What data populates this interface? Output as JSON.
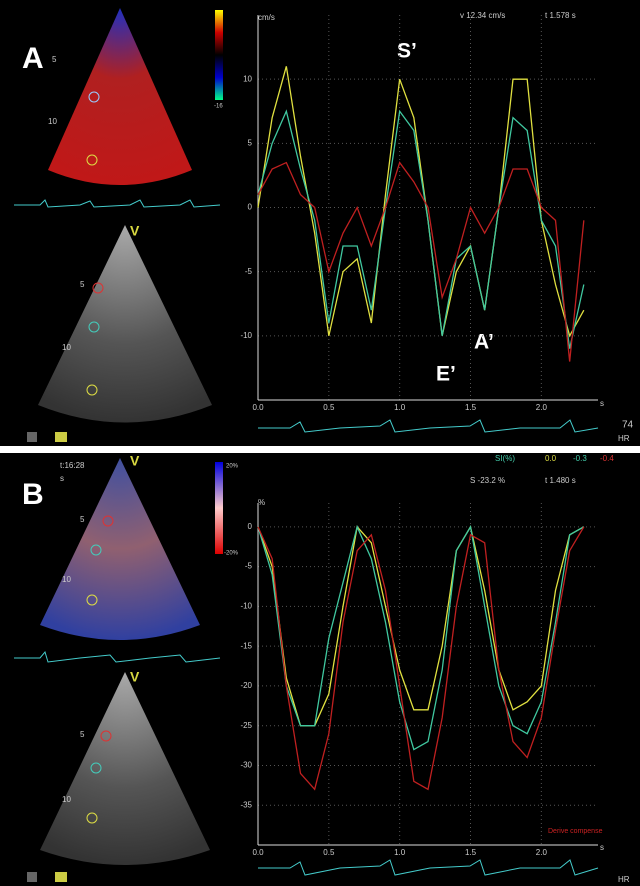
{
  "chart_data": [
    {
      "type": "line",
      "panel_label": "A",
      "y_unit": "cm/s",
      "readout_v": "v 12.34 cm/s",
      "readout_t": "t 1.578 s",
      "x_unit": "s",
      "annotations": [
        "S’",
        "E’",
        "A’"
      ],
      "hr": "74",
      "hr_label": "HR",
      "image_marker": "V",
      "depth_labels_top": [
        5,
        10
      ],
      "depth_labels_bottom": [
        5,
        10
      ],
      "colorbar_labels": [
        "-16"
      ],
      "x": [
        0,
        0.1,
        0.2,
        0.3,
        0.4,
        0.5,
        0.6,
        0.7,
        0.8,
        0.9,
        1.0,
        1.1,
        1.2,
        1.3,
        1.4,
        1.5,
        1.6,
        1.7,
        1.8,
        1.9,
        2.0,
        2.1,
        2.2,
        2.3
      ],
      "series": [
        {
          "color": "#e0e040",
          "values": [
            0,
            7,
            11,
            4,
            -2,
            -10,
            -5,
            -4,
            -9,
            1,
            10,
            7,
            -1,
            -10,
            -5,
            -3,
            -8,
            0,
            10,
            10,
            -1,
            -6,
            -10,
            -8
          ]
        },
        {
          "color": "#40c8a0",
          "values": [
            1,
            5,
            7.5,
            3,
            -1,
            -9,
            -3,
            -3,
            -8,
            0,
            7.5,
            6,
            -1,
            -10,
            -4,
            -3,
            -8,
            0,
            7,
            6,
            -1,
            -3,
            -11,
            -6
          ]
        },
        {
          "color": "#c02020",
          "values": [
            1,
            3,
            3.5,
            1,
            0,
            -5,
            -2,
            0,
            -3,
            0,
            3.5,
            2,
            0,
            -7,
            -4,
            0,
            -2,
            0,
            3,
            3,
            0,
            -1,
            -12,
            -1
          ]
        }
      ],
      "xlim": [
        0,
        2.4
      ],
      "ylim": [
        -15,
        15
      ],
      "xticks": [
        {
          "value": 0,
          "label": "0.0"
        },
        0.5,
        {
          "value": 1,
          "label": "1.0"
        },
        1.5,
        {
          "value": 2,
          "label": "2.0"
        }
      ],
      "yticks": [
        -10,
        -5,
        0,
        5,
        10
      ],
      "grid": true
    },
    {
      "type": "line",
      "panel_label": "B",
      "time": "t:16:28",
      "time_unit": "s",
      "legend_title": "SI(%)",
      "legend_values": [
        "0.0",
        "-0.3",
        "-0.4"
      ],
      "readout_v": "S -23.2 %",
      "readout_t": "t 1.480 s",
      "y_unit": "%",
      "x_unit": "s",
      "note": "Derive compense",
      "hr_label": "HR",
      "image_marker": "V",
      "depth_labels_top": [
        5,
        10
      ],
      "depth_labels_bottom": [
        5,
        10
      ],
      "colorbar_labels": [
        "20%",
        "-20%"
      ],
      "x": [
        0,
        0.1,
        0.2,
        0.3,
        0.4,
        0.5,
        0.6,
        0.7,
        0.8,
        0.9,
        1.0,
        1.1,
        1.2,
        1.3,
        1.4,
        1.5,
        1.6,
        1.7,
        1.8,
        1.9,
        2.0,
        2.1,
        2.2,
        2.3
      ],
      "series": [
        {
          "color": "#e0e040",
          "values": [
            0,
            -5,
            -19,
            -25,
            -25,
            -21,
            -10,
            0,
            -2,
            -10,
            -18,
            -23,
            -23,
            -15,
            -3,
            0,
            -8,
            -18,
            -23,
            -22,
            -20,
            -8,
            -1,
            0
          ]
        },
        {
          "color": "#40c8a0",
          "values": [
            0,
            -6,
            -20,
            -25,
            -25,
            -14,
            -7,
            0,
            -4,
            -12,
            -22,
            -28,
            -27,
            -18,
            -3,
            0,
            -10,
            -20,
            -25,
            -26,
            -22,
            -12,
            -1,
            0
          ]
        },
        {
          "color": "#c02020",
          "values": [
            0,
            -4,
            -20,
            -31,
            -33,
            -26,
            -12,
            -3,
            -1,
            -8,
            -20,
            -32,
            -33,
            -24,
            -10,
            -1,
            -2,
            -18,
            -27,
            -29,
            -24,
            -13,
            -3,
            0
          ]
        }
      ],
      "xlim": [
        0,
        2.4
      ],
      "ylim": [
        -40,
        3
      ],
      "xticks": [
        {
          "value": 0,
          "label": "0.0"
        },
        0.5,
        {
          "value": 1,
          "label": "1.0"
        },
        1.5,
        {
          "value": 2,
          "label": "2.0"
        }
      ],
      "yticks": [
        0,
        -5,
        -10,
        -15,
        -20,
        -25,
        -30,
        -35
      ],
      "grid": true
    }
  ]
}
